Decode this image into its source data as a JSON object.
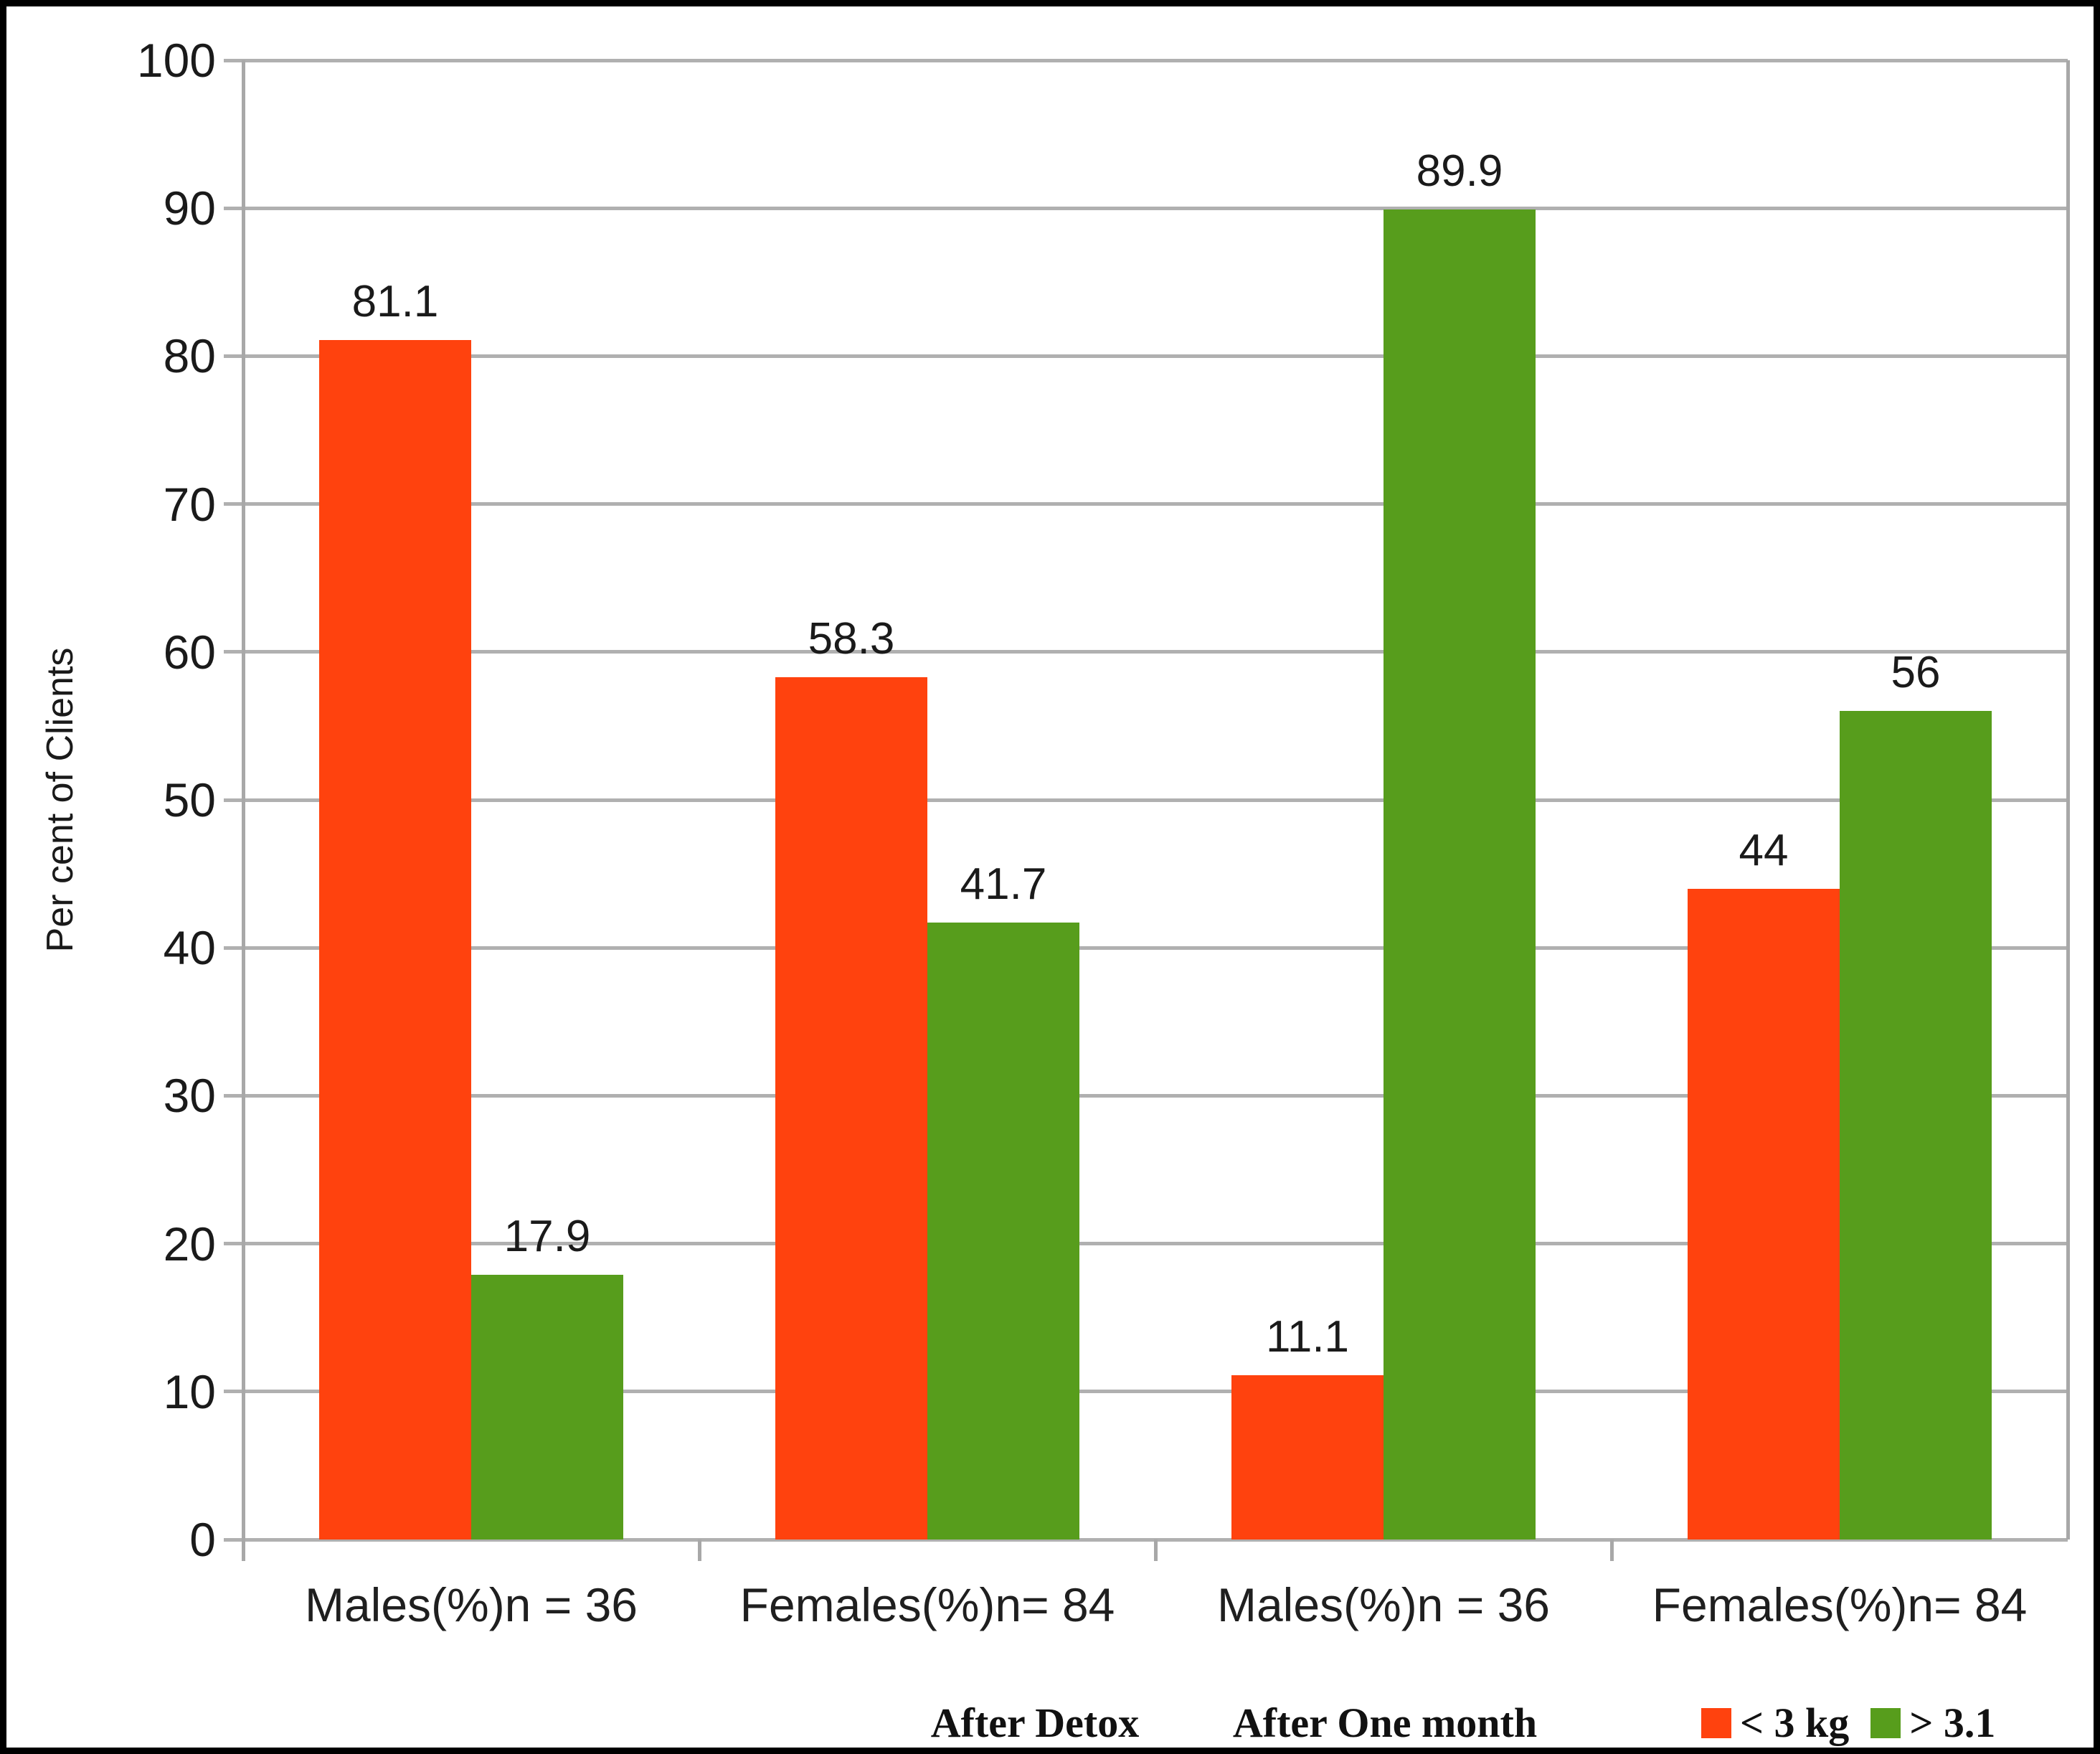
{
  "chart_data": {
    "type": "bar",
    "title": "",
    "ylabel": "Per cent of Clients",
    "xlabel": "",
    "ylim": [
      0,
      100
    ],
    "ytick_step": 10,
    "yticks": [
      100,
      90,
      80,
      70,
      60,
      50,
      40,
      30,
      20,
      10,
      0
    ],
    "categories": [
      "Males(%)n = 36",
      "Females(%)n= 84",
      "Males(%)n = 36",
      "Females(%)n= 84"
    ],
    "series": [
      {
        "name": "< 3 kg",
        "color": "#FF420E",
        "values": [
          81.1,
          58.3,
          11.1,
          44
        ]
      },
      {
        "name": "> 3.1",
        "color": "#579D1C",
        "values": [
          17.9,
          41.7,
          89.9,
          56
        ]
      }
    ],
    "data_labels_shown": true,
    "grid": true,
    "gridline_color": "#b0b0b0",
    "axis_color": "#a8a8a8",
    "text_color": "#1a1a1a",
    "legend_position": "bottom-right",
    "phase_labels": [
      "After Detox",
      "After One month"
    ],
    "legend": [
      {
        "label": "< 3 kg",
        "color": "#FF420E"
      },
      {
        "label": "> 3.1",
        "color": "#579D1C"
      }
    ]
  }
}
